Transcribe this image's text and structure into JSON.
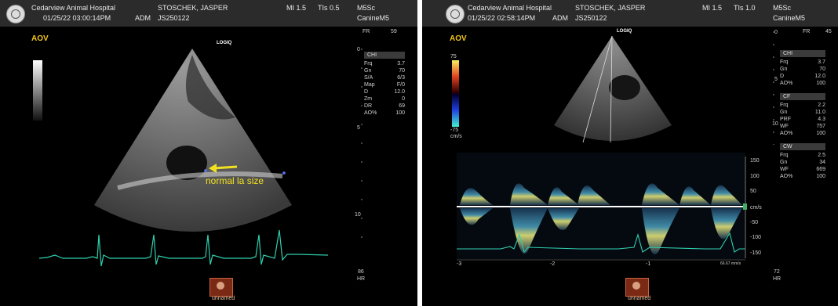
{
  "left": {
    "hospital": "Cedarview Animal Hospital",
    "datetime": "01/25/22 03:00:14PM",
    "operator": "ADM",
    "patient": "STOSCHEK, JASPER",
    "patient_id": "JS250122",
    "mi": "MI 1.5",
    "tis": "TIs 0.5",
    "probe": "M5Sc",
    "preset": "CanineM5",
    "mode": "AOV",
    "brand": "LOGIQ",
    "fr_label": "FR",
    "fr_value": "59",
    "chi_box": "CHI",
    "params": [
      {
        "k": "Frq",
        "v": "3.7"
      },
      {
        "k": "Gn",
        "v": "70"
      },
      {
        "k": "S/A",
        "v": "6/3"
      },
      {
        "k": "Map",
        "v": "F/0"
      },
      {
        "k": "D",
        "v": "12.0"
      },
      {
        "k": "Zm",
        "v": "0"
      },
      {
        "k": "DR",
        "v": "69"
      },
      {
        "k": "AO%",
        "v": "100"
      }
    ],
    "depth_marks": [
      "0",
      "5",
      "10"
    ],
    "annotation": "normal la size",
    "hr_value": "86",
    "hr_label": "HR",
    "clip_label": "unnamed"
  },
  "right": {
    "hospital": "Cedarview Animal Hospital",
    "datetime": "01/25/22 02:58:14PM",
    "operator": "ADM",
    "patient": "STOSCHEK, JASPER",
    "patient_id": "JS250122",
    "mi": "MI 1.5",
    "tis": "TIs 1.0",
    "probe": "M5Sc",
    "preset": "CanineM5",
    "mode": "AOV",
    "brand": "LOGIQ",
    "fr_label": "FR",
    "fr_value": "45",
    "color_scale_top": "75",
    "color_scale_bottom": "-75",
    "color_scale_unit": "cm/s",
    "chi_box": "CHI",
    "chi_params": [
      {
        "k": "Frq",
        "v": "3.7"
      },
      {
        "k": "Gn",
        "v": "70"
      },
      {
        "k": "D",
        "v": "12.0"
      },
      {
        "k": "AO%",
        "v": "100"
      }
    ],
    "cf_box": "CF",
    "cf_params": [
      {
        "k": "Frq",
        "v": "2.2"
      },
      {
        "k": "Gn",
        "v": "11.0"
      },
      {
        "k": "PRF",
        "v": "4.3"
      },
      {
        "k": "WF",
        "v": "757"
      },
      {
        "k": "AO%",
        "v": "100"
      }
    ],
    "cw_box": "CW",
    "cw_params": [
      {
        "k": "Frq",
        "v": "2.5"
      },
      {
        "k": "Gn",
        "v": "34"
      },
      {
        "k": "WF",
        "v": "669"
      },
      {
        "k": "AO%",
        "v": "100"
      }
    ],
    "depth_marks": [
      "0",
      "5",
      "10"
    ],
    "velocity_ticks": [
      "150",
      "100",
      "50",
      "cm/s",
      "-50",
      "-100",
      "-150"
    ],
    "time_ticks": [
      "-3",
      "-2",
      "-1"
    ],
    "sweep_label": "66.67 mm/s",
    "hr_value": "72",
    "hr_label": "HR",
    "clip_label": "unnamed"
  }
}
